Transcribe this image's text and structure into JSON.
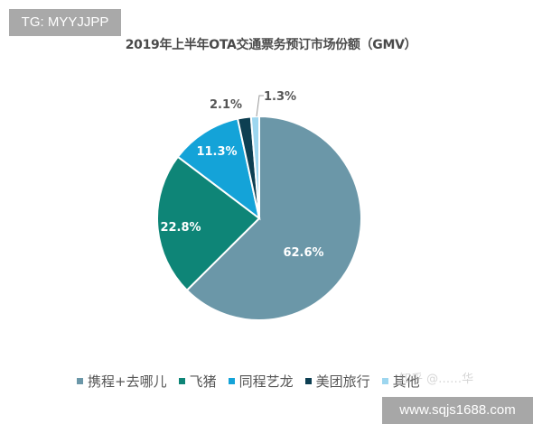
{
  "badges": {
    "top_left": "TG: MYYJJPP",
    "bottom_right": "www.sqjs1688.com",
    "faint_watermark": "知乎 @……华"
  },
  "chart_data": {
    "type": "pie",
    "title": "2019年上半年OTA交通票务预订市场份额（GMV）",
    "categories": [
      "携程+去哪儿",
      "飞猪",
      "同程艺龙",
      "美团旅行",
      "其他"
    ],
    "values": [
      62.6,
      22.8,
      11.3,
      2.1,
      1.3
    ],
    "labels": [
      "62.6%",
      "22.8%",
      "11.3%",
      "2.1%",
      "1.3%"
    ],
    "colors": [
      "#6b97a8",
      "#0e8577",
      "#14a3d8",
      "#0d3f52",
      "#9dd6ef"
    ],
    "start_angle_deg": 0,
    "direction": "clockwise",
    "legend_position": "bottom"
  },
  "legend": [
    {
      "label": "携程+去哪儿",
      "color": "#6b97a8"
    },
    {
      "label": "飞猪",
      "color": "#0e8577"
    },
    {
      "label": "同程艺龙",
      "color": "#14a3d8"
    },
    {
      "label": "美团旅行",
      "color": "#0d3f52"
    },
    {
      "label": "其他",
      "color": "#9dd6ef"
    }
  ]
}
